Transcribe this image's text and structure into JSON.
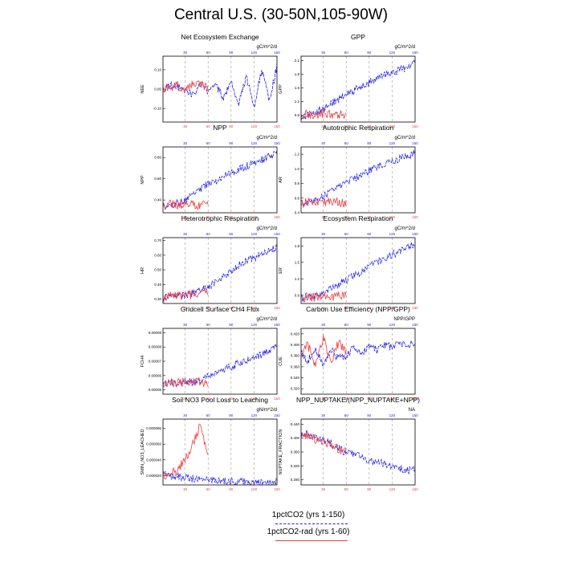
{
  "title": "Central U.S. (30-50N,105-90W)",
  "colors": {
    "blue": "#1f1fe6",
    "red": "#f03c3c",
    "grid": "#999999",
    "axis": "#000000"
  },
  "legend": {
    "blue_label": "1pctCO2 (yrs 1-150)",
    "red_label": "1pctCO2-rad (yrs 1-60)"
  },
  "chart_data": [
    {
      "id": "nee",
      "type": "line",
      "title": "Net Ecosystem Exchange",
      "units": "gC/m^2/d",
      "ylabel": "NEE",
      "yticks": [
        "0.10",
        "0.00",
        "-0.10"
      ],
      "tick_values": [
        0.1,
        0.0,
        -0.1
      ],
      "ylim": [
        -0.17,
        0.17
      ],
      "xticks": [
        "30",
        "60",
        "90",
        "120",
        "150"
      ],
      "xlim": [
        1,
        150
      ],
      "series": [
        {
          "color": "blue",
          "x": [
            1,
            10,
            20,
            30,
            40,
            50,
            60,
            70,
            80,
            90,
            100,
            110,
            120,
            130,
            140,
            150
          ],
          "values": [
            0.0,
            0.02,
            0.01,
            0.0,
            -0.03,
            0.03,
            -0.02,
            0.02,
            -0.05,
            0.04,
            -0.08,
            0.07,
            -0.09,
            0.1,
            -0.06,
            0.12
          ]
        },
        {
          "color": "red",
          "x": [
            1,
            10,
            20,
            30,
            40,
            50,
            60
          ],
          "values": [
            0.0,
            0.01,
            0.02,
            -0.01,
            0.03,
            0.02,
            0.01
          ]
        }
      ]
    },
    {
      "id": "gpp",
      "type": "line",
      "title": "GPP",
      "units": "gC/m^2/d",
      "ylabel": "GPP",
      "yticks": [
        "2.1",
        "1.8",
        "1.5",
        "1.2",
        "0.9"
      ],
      "tick_values": [
        2.1,
        1.8,
        1.5,
        1.2,
        0.9
      ],
      "ylim": [
        0.75,
        2.2
      ],
      "xticks": [
        "30",
        "60",
        "90",
        "120",
        "150"
      ],
      "xlim": [
        1,
        150
      ],
      "series": [
        {
          "color": "blue",
          "x": [
            1,
            10,
            20,
            30,
            40,
            50,
            60,
            70,
            80,
            90,
            100,
            110,
            120,
            130,
            140,
            150
          ],
          "values": [
            0.88,
            0.92,
            0.97,
            1.05,
            1.15,
            1.25,
            1.35,
            1.45,
            1.55,
            1.62,
            1.7,
            1.78,
            1.83,
            1.9,
            1.95,
            2.05
          ]
        },
        {
          "color": "red",
          "x": [
            1,
            10,
            20,
            30,
            40,
            50,
            60
          ],
          "values": [
            0.88,
            0.92,
            0.9,
            0.94,
            0.92,
            0.91,
            0.92
          ]
        }
      ]
    },
    {
      "id": "npp",
      "type": "line",
      "title": "NPP",
      "units": "gC/m^2/d",
      "ylabel": "NPP",
      "yticks": [
        "0.80",
        "0.60",
        "0.40"
      ],
      "tick_values": [
        0.8,
        0.6,
        0.4
      ],
      "ylim": [
        0.28,
        0.9
      ],
      "xticks": [
        "30",
        "60",
        "90",
        "120",
        "150"
      ],
      "xlim": [
        1,
        150
      ],
      "series": [
        {
          "color": "blue",
          "x": [
            1,
            10,
            20,
            30,
            40,
            50,
            60,
            70,
            80,
            90,
            100,
            110,
            120,
            130,
            140,
            150
          ],
          "values": [
            0.34,
            0.35,
            0.37,
            0.4,
            0.45,
            0.5,
            0.55,
            0.58,
            0.62,
            0.66,
            0.69,
            0.72,
            0.75,
            0.78,
            0.81,
            0.85
          ]
        },
        {
          "color": "red",
          "x": [
            1,
            10,
            20,
            30,
            40,
            50,
            60
          ],
          "values": [
            0.34,
            0.36,
            0.35,
            0.37,
            0.36,
            0.35,
            0.37
          ]
        }
      ]
    },
    {
      "id": "ar",
      "type": "line",
      "title": "Autotrophic Respiration",
      "units": "gC/m^2/d",
      "ylabel": "AR",
      "yticks": [
        "1.2",
        "1.0",
        "0.8",
        "0.6",
        "0.4"
      ],
      "tick_values": [
        1.2,
        1.0,
        0.8,
        0.6,
        0.4
      ],
      "ylim": [
        0.4,
        1.3
      ],
      "xticks": [
        "30",
        "60",
        "90",
        "120",
        "150"
      ],
      "xlim": [
        1,
        150
      ],
      "series": [
        {
          "color": "blue",
          "x": [
            1,
            10,
            20,
            30,
            40,
            50,
            60,
            70,
            80,
            90,
            100,
            110,
            120,
            130,
            140,
            150
          ],
          "values": [
            0.52,
            0.55,
            0.58,
            0.62,
            0.68,
            0.74,
            0.8,
            0.86,
            0.92,
            0.97,
            1.02,
            1.07,
            1.1,
            1.14,
            1.18,
            1.22
          ]
        },
        {
          "color": "red",
          "x": [
            1,
            10,
            20,
            30,
            40,
            50,
            60
          ],
          "values": [
            0.52,
            0.55,
            0.53,
            0.56,
            0.54,
            0.55,
            0.53
          ]
        }
      ]
    },
    {
      "id": "hr",
      "type": "line",
      "title": "Heterotrophic Respiration",
      "units": "gC/m^2/d",
      "ylabel": "HR",
      "yticks": [
        "0.70",
        "0.60",
        "0.50",
        "0.40",
        "0.30"
      ],
      "tick_values": [
        0.7,
        0.6,
        0.5,
        0.4,
        0.3
      ],
      "ylim": [
        0.27,
        0.72
      ],
      "xticks": [
        "30",
        "60",
        "90",
        "120",
        "150"
      ],
      "xlim": [
        1,
        150
      ],
      "series": [
        {
          "color": "blue",
          "x": [
            1,
            10,
            20,
            30,
            40,
            50,
            60,
            70,
            80,
            90,
            100,
            110,
            120,
            130,
            140,
            150
          ],
          "values": [
            0.31,
            0.32,
            0.32,
            0.33,
            0.34,
            0.36,
            0.38,
            0.42,
            0.46,
            0.49,
            0.53,
            0.56,
            0.58,
            0.61,
            0.63,
            0.66
          ]
        },
        {
          "color": "red",
          "x": [
            1,
            10,
            20,
            30,
            40,
            50,
            60
          ],
          "values": [
            0.31,
            0.32,
            0.32,
            0.33,
            0.33,
            0.34,
            0.34
          ]
        }
      ]
    },
    {
      "id": "er",
      "type": "line",
      "title": "Ecosystem Respiration",
      "units": "gC/m^2/d",
      "ylabel": "ER",
      "yticks": [
        "1.8",
        "1.5",
        "1.2",
        "0.9"
      ],
      "tick_values": [
        1.8,
        1.5,
        1.2,
        0.9
      ],
      "ylim": [
        0.75,
        1.95
      ],
      "xticks": [
        "30",
        "60",
        "90",
        "120",
        "150"
      ],
      "xlim": [
        1,
        150
      ],
      "series": [
        {
          "color": "blue",
          "x": [
            1,
            10,
            20,
            30,
            40,
            50,
            60,
            70,
            80,
            90,
            100,
            110,
            120,
            130,
            140,
            150
          ],
          "values": [
            0.84,
            0.87,
            0.9,
            0.95,
            1.02,
            1.1,
            1.18,
            1.26,
            1.34,
            1.42,
            1.5,
            1.58,
            1.64,
            1.7,
            1.76,
            1.84
          ]
        },
        {
          "color": "red",
          "x": [
            1,
            10,
            20,
            30,
            40,
            50,
            60
          ],
          "values": [
            0.84,
            0.87,
            0.86,
            0.9,
            0.88,
            0.88,
            0.89
          ]
        }
      ]
    },
    {
      "id": "fch4",
      "type": "line",
      "title": "Gridcell Surface CH4 Flux",
      "units": "gC/m^2/d",
      "ylabel": "FCH4",
      "yticks": [
        "0.00009",
        "0.00008",
        "0.00007",
        "0.00006",
        "0.00005"
      ],
      "tick_values": [
        9e-05,
        8e-05,
        7e-05,
        6e-05,
        5e-05
      ],
      "ylim": [
        4.7e-05,
        9.3e-05
      ],
      "xticks": [
        "30",
        "60",
        "90",
        "120",
        "150"
      ],
      "xlim": [
        1,
        150
      ],
      "series": [
        {
          "color": "blue",
          "x": [
            1,
            10,
            20,
            30,
            40,
            50,
            60,
            70,
            80,
            90,
            100,
            110,
            120,
            130,
            140,
            150
          ],
          "values": [
            5.4e-05,
            5.5e-05,
            5.4e-05,
            5.6e-05,
            5.5e-05,
            5.7e-05,
            6e-05,
            6.2e-05,
            6.5e-05,
            6.6e-05,
            6.9e-05,
            7e-05,
            7.3e-05,
            7.5e-05,
            7.8e-05,
            8.2e-05
          ]
        },
        {
          "color": "red",
          "x": [
            1,
            10,
            20,
            30,
            40,
            50,
            60
          ],
          "values": [
            5.4e-05,
            5.5e-05,
            5.5e-05,
            5.6e-05,
            5.5e-05,
            5.6e-05,
            5.5e-05
          ]
        }
      ]
    },
    {
      "id": "cue",
      "type": "line",
      "title": "Carbon Use Efficiency (NPP/GPP)",
      "units": "NPP/GPP",
      "ylabel": "CUE",
      "yticks": [
        "0.420",
        "0.400",
        "0.380",
        "0.360",
        "0.340",
        "0.320"
      ],
      "tick_values": [
        0.42,
        0.4,
        0.38,
        0.36,
        0.34,
        0.32
      ],
      "ylim": [
        0.31,
        0.43
      ],
      "xticks": [
        "30",
        "60",
        "90",
        "120",
        "150"
      ],
      "xlim": [
        1,
        150
      ],
      "series": [
        {
          "color": "blue",
          "x": [
            1,
            10,
            20,
            30,
            40,
            50,
            60,
            70,
            80,
            90,
            100,
            110,
            120,
            130,
            140,
            150
          ],
          "values": [
            0.385,
            0.37,
            0.395,
            0.36,
            0.39,
            0.375,
            0.38,
            0.395,
            0.385,
            0.398,
            0.39,
            0.4,
            0.395,
            0.402,
            0.398,
            0.405
          ]
        },
        {
          "color": "red",
          "x": [
            1,
            10,
            20,
            30,
            40,
            50,
            60
          ],
          "values": [
            0.385,
            0.4,
            0.36,
            0.415,
            0.37,
            0.405,
            0.385
          ]
        }
      ]
    },
    {
      "id": "sminn",
      "type": "line",
      "title": "Soil NO3 Pool Loss to Leaching",
      "units": "gN/m^2/d",
      "ylabel": "SMIN_NO3_LEACHED",
      "yticks": [
        "0.000080",
        "0.000060",
        "0.000040",
        "0.000020"
      ],
      "tick_values": [
        8e-05,
        6e-05,
        4e-05,
        2e-05
      ],
      "ylim": [
        8e-06,
        9.2e-05
      ],
      "xticks": [
        "30",
        "60",
        "90",
        "120",
        "150"
      ],
      "xlim": [
        1,
        150
      ],
      "series": [
        {
          "color": "blue",
          "x": [
            1,
            10,
            20,
            30,
            40,
            50,
            60,
            70,
            80,
            90,
            100,
            110,
            120,
            130,
            140,
            150
          ],
          "values": [
            2.2e-05,
            2e-05,
            1.9e-05,
            1.7e-05,
            1.6e-05,
            1.5e-05,
            1.4e-05,
            1.3e-05,
            1.3e-05,
            1.2e-05,
            1.2e-05,
            1.2e-05,
            1.1e-05,
            1.1e-05,
            1.1e-05,
            1.2e-05
          ]
        },
        {
          "color": "red",
          "x": [
            1,
            10,
            20,
            30,
            40,
            50,
            60
          ],
          "values": [
            2e-05,
            2.2e-05,
            2.8e-05,
            4e-05,
            6e-05,
            8.5e-05,
            4.5e-05
          ]
        }
      ]
    },
    {
      "id": "nuptake",
      "type": "line",
      "title": "NPP_NUPTAKE/(NPP_NUPTAKE+NPP)",
      "units": "NA",
      "ylabel": "NUPTAKE_FRACTION",
      "yticks": [
        "0.440",
        "0.400",
        "0.360",
        "0.320",
        "0.280"
      ],
      "tick_values": [
        0.44,
        0.4,
        0.36,
        0.32,
        0.28
      ],
      "ylim": [
        0.265,
        0.455
      ],
      "xticks": [
        "30",
        "60",
        "90",
        "120",
        "150"
      ],
      "xlim": [
        1,
        150
      ],
      "series": [
        {
          "color": "blue",
          "x": [
            1,
            10,
            20,
            30,
            40,
            50,
            60,
            70,
            80,
            90,
            100,
            110,
            120,
            130,
            140,
            150
          ],
          "values": [
            0.41,
            0.415,
            0.4,
            0.395,
            0.385,
            0.37,
            0.36,
            0.355,
            0.345,
            0.335,
            0.33,
            0.325,
            0.318,
            0.312,
            0.305,
            0.315
          ]
        },
        {
          "color": "red",
          "x": [
            1,
            10,
            20,
            30,
            40,
            50,
            60
          ],
          "values": [
            0.41,
            0.405,
            0.395,
            0.39,
            0.38,
            0.37,
            0.36
          ]
        }
      ]
    }
  ]
}
